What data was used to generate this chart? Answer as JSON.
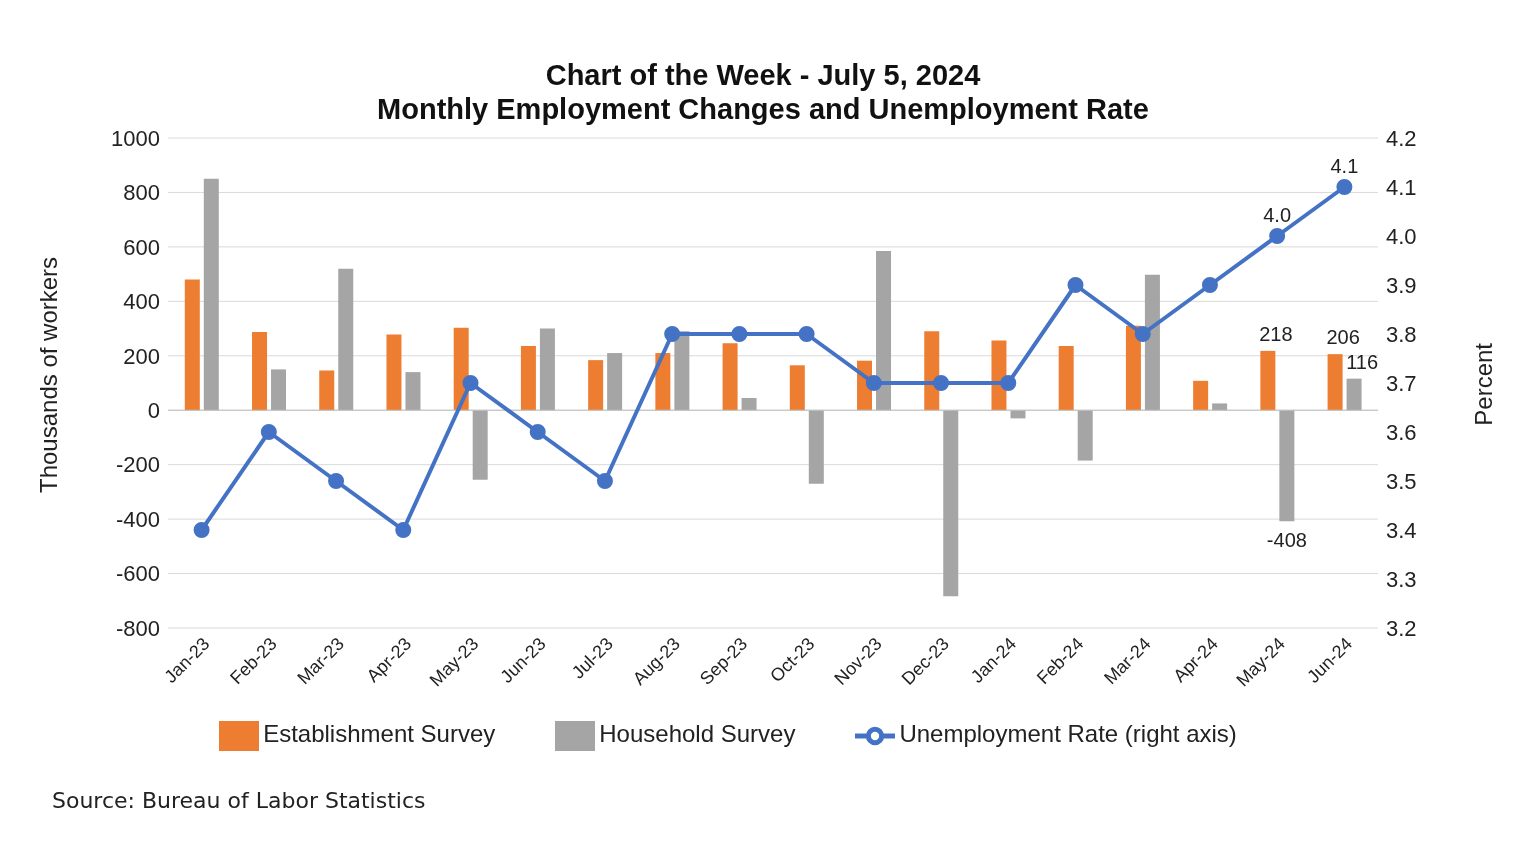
{
  "chart_data": {
    "type": "bar",
    "title": "Chart of the Week - July 5, 2024",
    "subtitle": "Monthly Employment Changes and Unemployment Rate",
    "ylabel": "Thousands of workers",
    "y2label": "Percent",
    "categories": [
      "Jan-23",
      "Feb-23",
      "Mar-23",
      "Apr-23",
      "May-23",
      "Jun-23",
      "Jul-23",
      "Aug-23",
      "Sep-23",
      "Oct-23",
      "Nov-23",
      "Dec-23",
      "Jan-24",
      "Feb-24",
      "Mar-24",
      "Apr-24",
      "May-24",
      "Jun-24"
    ],
    "series": [
      {
        "name": "Establishment Survey",
        "color": "#ed7d31",
        "values": [
          480,
          287,
          146,
          278,
          303,
          236,
          184,
          210,
          246,
          165,
          182,
          290,
          256,
          236,
          310,
          108,
          218,
          206
        ],
        "value_labels": [
          null,
          null,
          null,
          null,
          null,
          null,
          null,
          null,
          null,
          null,
          null,
          null,
          null,
          null,
          null,
          null,
          "218",
          "206"
        ]
      },
      {
        "name": "Household Survey",
        "color": "#a5a5a5",
        "values": [
          850,
          150,
          520,
          140,
          -255,
          300,
          210,
          290,
          45,
          -270,
          585,
          -683,
          -30,
          -185,
          498,
          25,
          -408,
          116
        ],
        "value_labels": [
          null,
          null,
          null,
          null,
          null,
          null,
          null,
          null,
          null,
          null,
          null,
          null,
          null,
          null,
          null,
          null,
          "-408",
          "116"
        ]
      },
      {
        "name": "Unemployment Rate (right axis)",
        "type": "line",
        "axis": "y2",
        "color": "#4472c4",
        "values": [
          3.4,
          3.6,
          3.5,
          3.4,
          3.7,
          3.6,
          3.5,
          3.8,
          3.8,
          3.8,
          3.7,
          3.7,
          3.7,
          3.9,
          3.8,
          3.9,
          4.0,
          4.1
        ],
        "value_labels": [
          null,
          null,
          null,
          null,
          null,
          null,
          null,
          null,
          null,
          null,
          null,
          null,
          null,
          null,
          null,
          null,
          "4.0",
          "4.1"
        ]
      }
    ],
    "ylim": [
      -800,
      1000
    ],
    "yticks": [
      -800,
      -600,
      -400,
      -200,
      0,
      200,
      400,
      600,
      800,
      1000
    ],
    "y2lim": [
      3.2,
      4.2
    ],
    "y2ticks": [
      {
        "value": 3.2,
        "label": "3.2"
      },
      {
        "value": 3.3,
        "label": "3.3"
      },
      {
        "value": 3.4,
        "label": "3.4"
      },
      {
        "value": 3.5,
        "label": "3.5"
      },
      {
        "value": 3.6,
        "label": "3.6"
      },
      {
        "value": 3.7,
        "label": "3.7"
      },
      {
        "value": 3.8,
        "label": "3.8"
      },
      {
        "value": 3.9,
        "label": "3.9"
      },
      {
        "value": 4.0,
        "label": "4.0"
      },
      {
        "value": 4.1,
        "label": "4.1"
      },
      {
        "value": 4.2,
        "label": "4.2"
      }
    ],
    "grid": "y",
    "legend": "bottom",
    "marker": "circle",
    "line_style": "solid",
    "annotations": [
      "Source: Bureau of Labor Statistics"
    ]
  }
}
